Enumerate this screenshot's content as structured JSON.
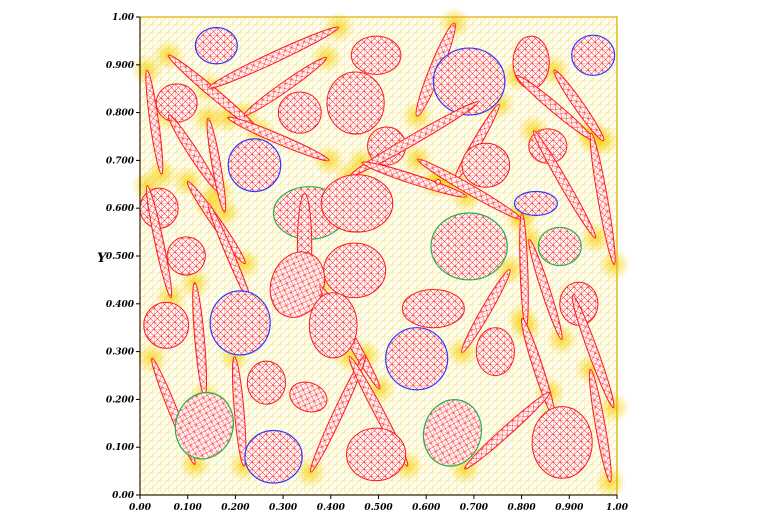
{
  "figure": {
    "y_axis_label": "Y",
    "x_ticks": [
      "0.00",
      "0.100",
      "0.200",
      "0.300",
      "0.400",
      "0.500",
      "0.600",
      "0.700",
      "0.800",
      "0.900",
      "1.00"
    ],
    "y_ticks": [
      "0.00",
      "0.100",
      "0.200",
      "0.300",
      "0.400",
      "0.500",
      "0.600",
      "0.700",
      "0.800",
      "0.900",
      "1.00"
    ],
    "xlim": [
      0,
      1
    ],
    "ylim": [
      0,
      1
    ],
    "colors": {
      "matrix_mesh": "#f3e37a",
      "matrix_mesh_dense": "#f4c400",
      "inclusion_mesh": "#ff1a1a",
      "interface_blue": "#2a3cff",
      "interface_green": "#22b14c",
      "border": "#e0b000"
    },
    "inclusions": [
      {
        "cx": 0.155,
        "cy": 0.84,
        "rx": 0.125,
        "ry": 0.01,
        "angle": -40,
        "edge": "red"
      },
      {
        "cx": 0.16,
        "cy": 0.94,
        "rx": 0.044,
        "ry": 0.038,
        "angle": 0,
        "edge": "blue"
      },
      {
        "cx": 0.28,
        "cy": 0.915,
        "rx": 0.15,
        "ry": 0.011,
        "angle": 25,
        "edge": "red"
      },
      {
        "cx": 0.305,
        "cy": 0.855,
        "rx": 0.105,
        "ry": 0.01,
        "angle": 35,
        "edge": "red"
      },
      {
        "cx": 0.495,
        "cy": 0.92,
        "rx": 0.052,
        "ry": 0.04,
        "angle": 0,
        "edge": "red"
      },
      {
        "cx": 0.62,
        "cy": 0.89,
        "rx": 0.105,
        "ry": 0.013,
        "angle": 68,
        "edge": "red"
      },
      {
        "cx": 0.69,
        "cy": 0.865,
        "rx": 0.075,
        "ry": 0.07,
        "angle": 0,
        "edge": "blue"
      },
      {
        "cx": 0.82,
        "cy": 0.905,
        "rx": 0.038,
        "ry": 0.055,
        "angle": 0,
        "edge": "red"
      },
      {
        "cx": 0.95,
        "cy": 0.92,
        "rx": 0.045,
        "ry": 0.042,
        "angle": 0,
        "edge": "blue"
      },
      {
        "cx": 0.03,
        "cy": 0.78,
        "rx": 0.11,
        "ry": 0.009,
        "angle": -82,
        "edge": "red"
      },
      {
        "cx": 0.077,
        "cy": 0.82,
        "rx": 0.043,
        "ry": 0.04,
        "angle": 0,
        "edge": "red"
      },
      {
        "cx": 0.335,
        "cy": 0.8,
        "rx": 0.045,
        "ry": 0.043,
        "angle": 0,
        "edge": "red"
      },
      {
        "cx": 0.452,
        "cy": 0.82,
        "rx": 0.06,
        "ry": 0.065,
        "angle": 0,
        "edge": "red"
      },
      {
        "cx": 0.29,
        "cy": 0.745,
        "rx": 0.115,
        "ry": 0.01,
        "angle": -23,
        "edge": "red"
      },
      {
        "cx": 0.112,
        "cy": 0.715,
        "rx": 0.095,
        "ry": 0.01,
        "angle": -57,
        "edge": "red"
      },
      {
        "cx": 0.16,
        "cy": 0.69,
        "rx": 0.1,
        "ry": 0.009,
        "angle": -80,
        "edge": "red"
      },
      {
        "cx": 0.24,
        "cy": 0.69,
        "rx": 0.055,
        "ry": 0.055,
        "angle": 0,
        "edge": "blue"
      },
      {
        "cx": 0.517,
        "cy": 0.73,
        "rx": 0.04,
        "ry": 0.04,
        "angle": 0,
        "edge": "red"
      },
      {
        "cx": 0.575,
        "cy": 0.745,
        "rx": 0.155,
        "ry": 0.01,
        "angle": 30,
        "edge": "red"
      },
      {
        "cx": 0.705,
        "cy": 0.735,
        "rx": 0.095,
        "ry": 0.009,
        "angle": 60,
        "edge": "red"
      },
      {
        "cx": 0.725,
        "cy": 0.69,
        "rx": 0.05,
        "ry": 0.046,
        "angle": 0,
        "edge": "red"
      },
      {
        "cx": 0.855,
        "cy": 0.73,
        "rx": 0.04,
        "ry": 0.036,
        "angle": 0,
        "edge": "red"
      },
      {
        "cx": 0.87,
        "cy": 0.81,
        "rx": 0.105,
        "ry": 0.01,
        "angle": -40,
        "edge": "red"
      },
      {
        "cx": 0.92,
        "cy": 0.815,
        "rx": 0.09,
        "ry": 0.01,
        "angle": -55,
        "edge": "red"
      },
      {
        "cx": 0.04,
        "cy": 0.6,
        "rx": 0.04,
        "ry": 0.042,
        "angle": 0,
        "edge": "red"
      },
      {
        "cx": 0.16,
        "cy": 0.57,
        "rx": 0.105,
        "ry": 0.01,
        "angle": -55,
        "edge": "red"
      },
      {
        "cx": 0.355,
        "cy": 0.59,
        "rx": 0.075,
        "ry": 0.055,
        "angle": 0,
        "edge": "green"
      },
      {
        "cx": 0.455,
        "cy": 0.61,
        "rx": 0.075,
        "ry": 0.06,
        "angle": 0,
        "edge": "red"
      },
      {
        "cx": 0.575,
        "cy": 0.66,
        "rx": 0.115,
        "ry": 0.01,
        "angle": -18,
        "edge": "red"
      },
      {
        "cx": 0.69,
        "cy": 0.64,
        "rx": 0.125,
        "ry": 0.01,
        "angle": -30,
        "edge": "red"
      },
      {
        "cx": 0.83,
        "cy": 0.61,
        "rx": 0.045,
        "ry": 0.025,
        "angle": 0,
        "edge": "blue"
      },
      {
        "cx": 0.89,
        "cy": 0.65,
        "rx": 0.13,
        "ry": 0.009,
        "angle": -60,
        "edge": "red"
      },
      {
        "cx": 0.97,
        "cy": 0.62,
        "rx": 0.14,
        "ry": 0.01,
        "angle": -80,
        "edge": "red"
      },
      {
        "cx": 0.04,
        "cy": 0.53,
        "rx": 0.12,
        "ry": 0.009,
        "angle": -78,
        "edge": "red"
      },
      {
        "cx": 0.097,
        "cy": 0.5,
        "rx": 0.04,
        "ry": 0.04,
        "angle": 0,
        "edge": "red"
      },
      {
        "cx": 0.19,
        "cy": 0.5,
        "rx": 0.12,
        "ry": 0.008,
        "angle": -67,
        "edge": "red"
      },
      {
        "cx": 0.45,
        "cy": 0.47,
        "rx": 0.065,
        "ry": 0.057,
        "angle": 0,
        "edge": "red"
      },
      {
        "cx": 0.345,
        "cy": 0.52,
        "rx": 0.015,
        "ry": 0.11,
        "angle": 0,
        "edge": "red"
      },
      {
        "cx": 0.625,
        "cy": 0.655,
        "rx": 0.005,
        "ry": 0.005,
        "angle": 0,
        "edge": "red"
      },
      {
        "cx": 0.33,
        "cy": 0.44,
        "rx": 0.055,
        "ry": 0.07,
        "angle": -20,
        "edge": "red"
      },
      {
        "cx": 0.69,
        "cy": 0.52,
        "rx": 0.08,
        "ry": 0.07,
        "angle": 0,
        "edge": "green"
      },
      {
        "cx": 0.805,
        "cy": 0.47,
        "rx": 0.12,
        "ry": 0.008,
        "angle": -88,
        "edge": "red"
      },
      {
        "cx": 0.85,
        "cy": 0.43,
        "rx": 0.11,
        "ry": 0.009,
        "angle": -72,
        "edge": "red"
      },
      {
        "cx": 0.88,
        "cy": 0.52,
        "rx": 0.045,
        "ry": 0.04,
        "angle": 0,
        "edge": "green"
      },
      {
        "cx": 0.92,
        "cy": 0.4,
        "rx": 0.04,
        "ry": 0.045,
        "angle": 0,
        "edge": "red"
      },
      {
        "cx": 0.44,
        "cy": 0.33,
        "rx": 0.125,
        "ry": 0.01,
        "angle": -60,
        "edge": "red"
      },
      {
        "cx": 0.615,
        "cy": 0.39,
        "rx": 0.065,
        "ry": 0.04,
        "angle": 0,
        "edge": "red"
      },
      {
        "cx": 0.725,
        "cy": 0.385,
        "rx": 0.1,
        "ry": 0.01,
        "angle": 60,
        "edge": "red"
      },
      {
        "cx": 0.055,
        "cy": 0.355,
        "rx": 0.047,
        "ry": 0.048,
        "angle": 0,
        "edge": "red"
      },
      {
        "cx": 0.21,
        "cy": 0.36,
        "rx": 0.063,
        "ry": 0.067,
        "angle": 0,
        "edge": "blue"
      },
      {
        "cx": 0.125,
        "cy": 0.325,
        "rx": 0.12,
        "ry": 0.01,
        "angle": -85,
        "edge": "red"
      },
      {
        "cx": 0.405,
        "cy": 0.355,
        "rx": 0.05,
        "ry": 0.068,
        "angle": 0,
        "edge": "red"
      },
      {
        "cx": 0.58,
        "cy": 0.285,
        "rx": 0.065,
        "ry": 0.065,
        "angle": 0,
        "edge": "blue"
      },
      {
        "cx": 0.745,
        "cy": 0.3,
        "rx": 0.04,
        "ry": 0.05,
        "angle": 0,
        "edge": "red"
      },
      {
        "cx": 0.835,
        "cy": 0.265,
        "rx": 0.11,
        "ry": 0.01,
        "angle": -72,
        "edge": "red"
      },
      {
        "cx": 0.95,
        "cy": 0.3,
        "rx": 0.125,
        "ry": 0.01,
        "angle": -70,
        "edge": "red"
      },
      {
        "cx": 0.07,
        "cy": 0.175,
        "rx": 0.12,
        "ry": 0.009,
        "angle": -68,
        "edge": "red"
      },
      {
        "cx": 0.135,
        "cy": 0.145,
        "rx": 0.06,
        "ry": 0.07,
        "angle": -15,
        "edge": "green"
      },
      {
        "cx": 0.208,
        "cy": 0.175,
        "rx": 0.115,
        "ry": 0.01,
        "angle": -85,
        "edge": "red"
      },
      {
        "cx": 0.265,
        "cy": 0.235,
        "rx": 0.04,
        "ry": 0.045,
        "angle": 0,
        "edge": "red"
      },
      {
        "cx": 0.353,
        "cy": 0.205,
        "rx": 0.04,
        "ry": 0.03,
        "angle": -20,
        "edge": "red"
      },
      {
        "cx": 0.415,
        "cy": 0.17,
        "rx": 0.135,
        "ry": 0.01,
        "angle": 65,
        "edge": "red"
      },
      {
        "cx": 0.28,
        "cy": 0.08,
        "rx": 0.06,
        "ry": 0.055,
        "angle": 0,
        "edge": "blue"
      },
      {
        "cx": 0.5,
        "cy": 0.175,
        "rx": 0.13,
        "ry": 0.01,
        "angle": -62,
        "edge": "red"
      },
      {
        "cx": 0.495,
        "cy": 0.085,
        "rx": 0.062,
        "ry": 0.055,
        "angle": 0,
        "edge": "red"
      },
      {
        "cx": 0.655,
        "cy": 0.13,
        "rx": 0.06,
        "ry": 0.07,
        "angle": -15,
        "edge": "green"
      },
      {
        "cx": 0.77,
        "cy": 0.135,
        "rx": 0.12,
        "ry": 0.01,
        "angle": 42,
        "edge": "red"
      },
      {
        "cx": 0.885,
        "cy": 0.11,
        "rx": 0.063,
        "ry": 0.075,
        "angle": 0,
        "edge": "red"
      },
      {
        "cx": 0.965,
        "cy": 0.145,
        "rx": 0.12,
        "ry": 0.01,
        "angle": -80,
        "edge": "red"
      }
    ]
  }
}
